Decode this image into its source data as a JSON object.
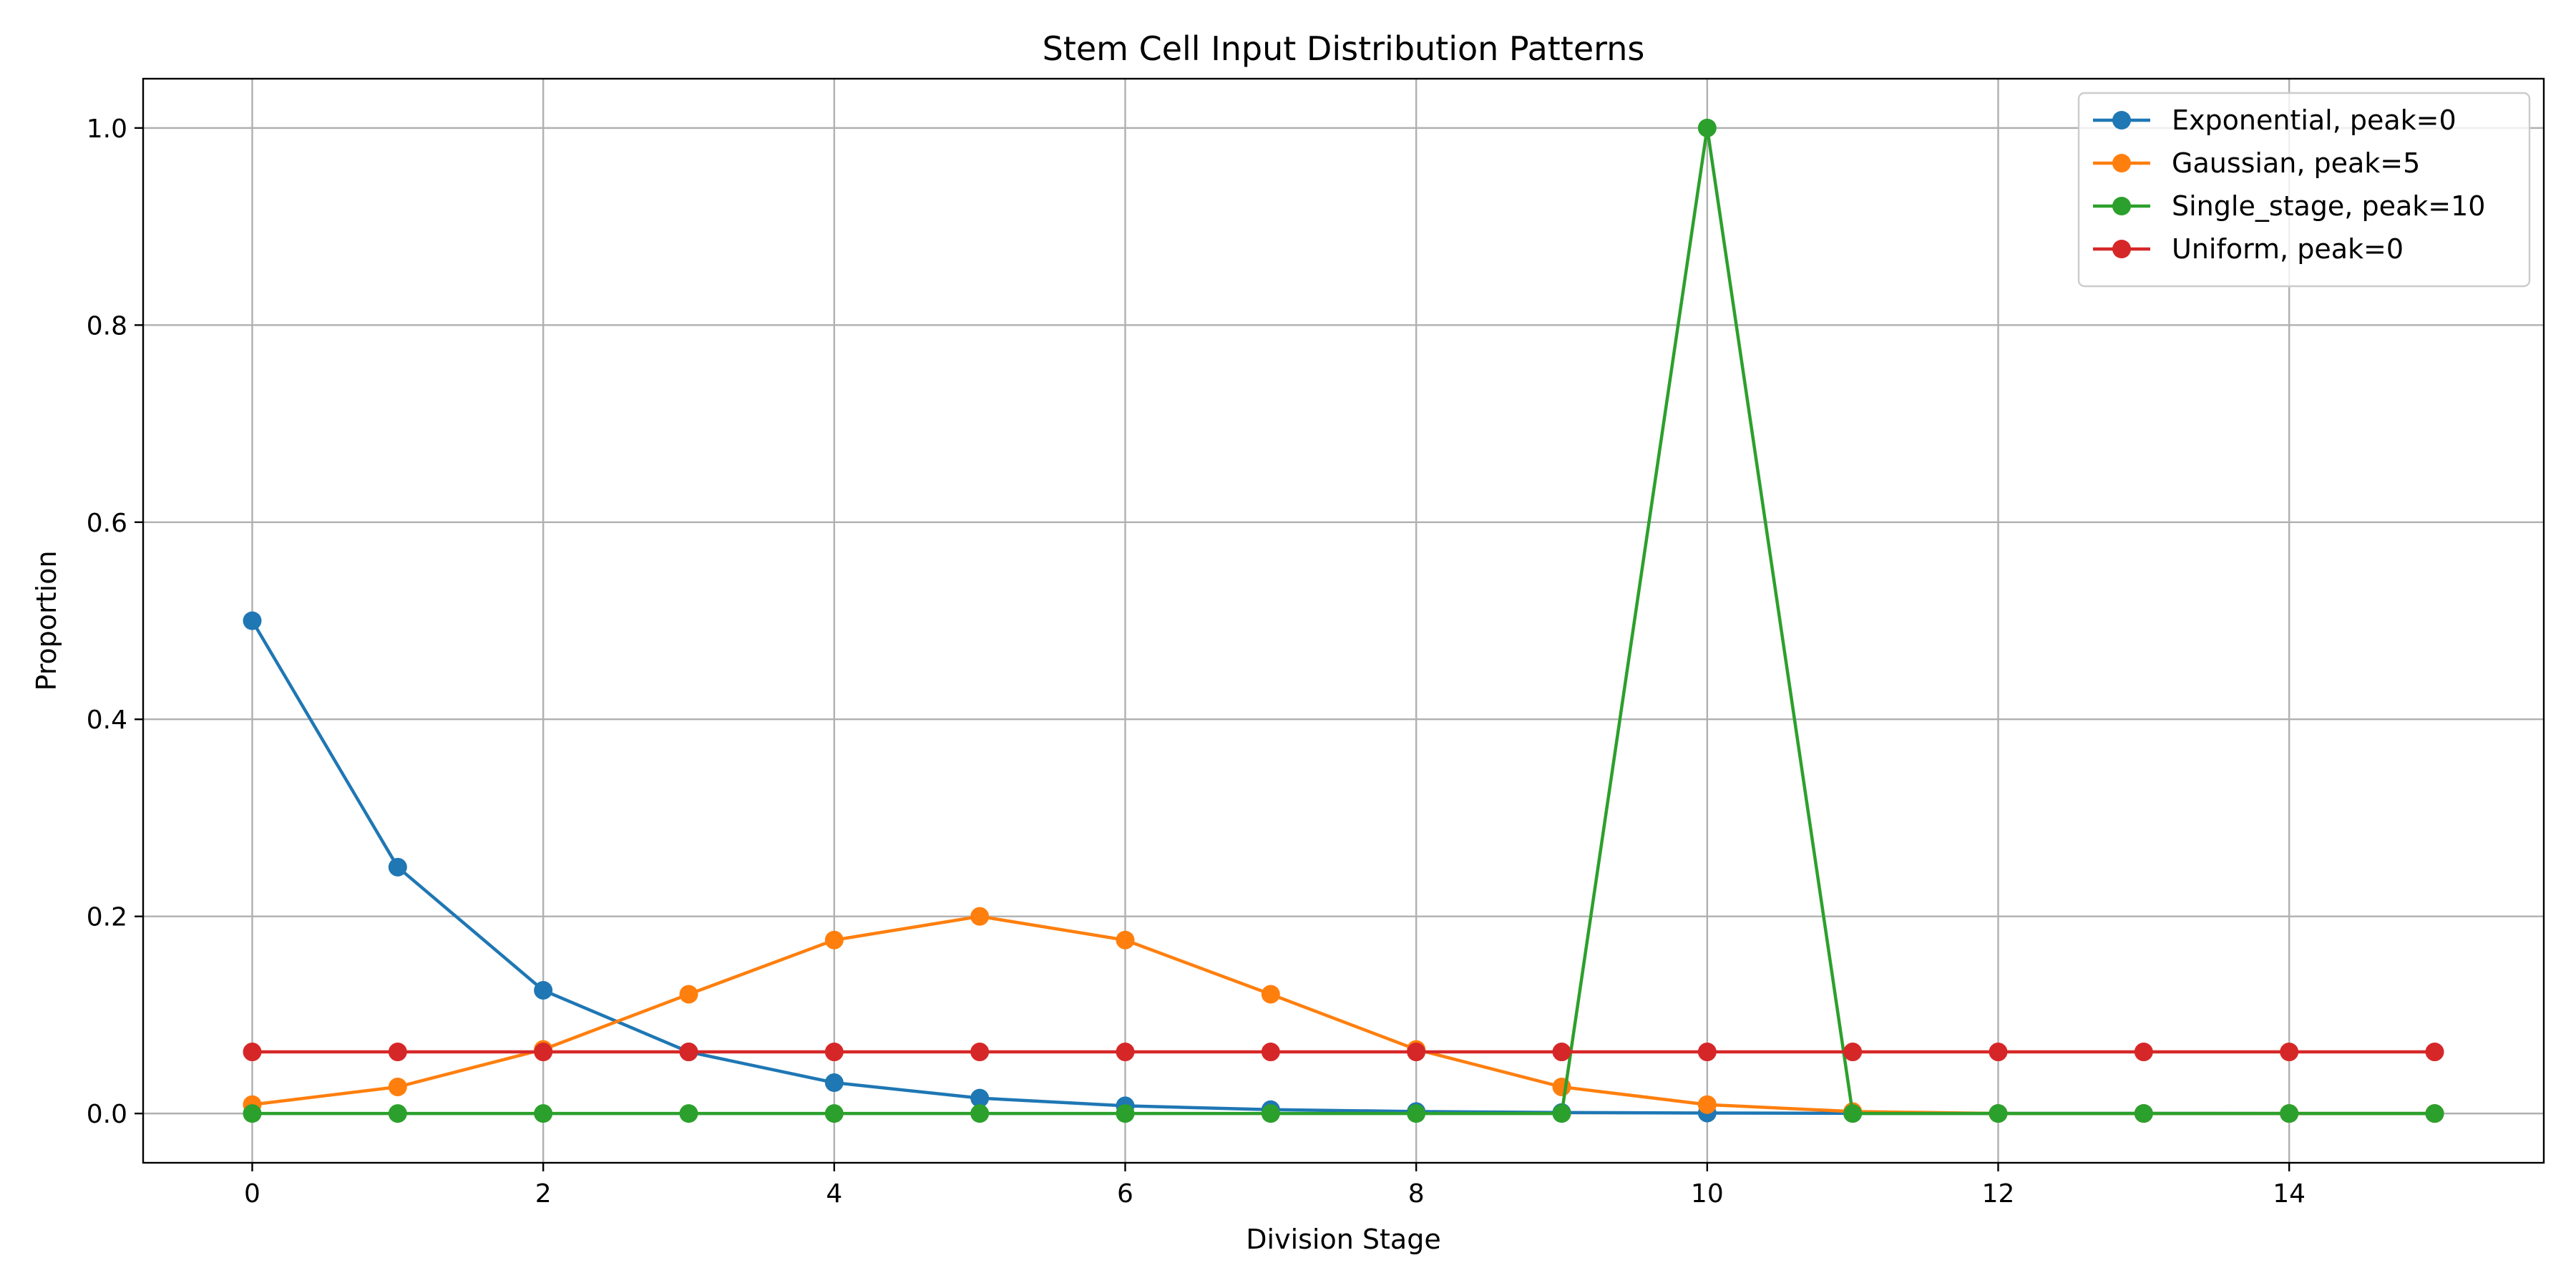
{
  "chart_data": {
    "type": "line",
    "title": "Stem Cell Input Distribution Patterns",
    "xlabel": "Division Stage",
    "ylabel": "Proportion",
    "xlim": [
      -0.75,
      15.75
    ],
    "ylim": [
      -0.05,
      1.05
    ],
    "xticks": [
      0,
      2,
      4,
      6,
      8,
      10,
      12,
      14
    ],
    "yticks": [
      0.0,
      0.2,
      0.4,
      0.6,
      0.8,
      1.0
    ],
    "xtick_labels": [
      "0",
      "2",
      "4",
      "6",
      "8",
      "10",
      "12",
      "14"
    ],
    "ytick_labels": [
      "0.0",
      "0.2",
      "0.4",
      "0.6",
      "0.8",
      "1.0"
    ],
    "grid": true,
    "legend_position": "top-right",
    "x": [
      0,
      1,
      2,
      3,
      4,
      5,
      6,
      7,
      8,
      9,
      10,
      11,
      12,
      13,
      14,
      15
    ],
    "series": [
      {
        "name": "Exponential, peak=0",
        "color": "#1f77b4",
        "values": [
          0.5,
          0.25,
          0.125,
          0.0625,
          0.0313,
          0.0156,
          0.0078,
          0.0039,
          0.002,
          0.001,
          0.0005,
          0.0002,
          0.0001,
          0.0001,
          0.0,
          0.0
        ]
      },
      {
        "name": "Gaussian, peak=5",
        "color": "#ff7f0e",
        "values": [
          0.009,
          0.027,
          0.065,
          0.121,
          0.176,
          0.2,
          0.176,
          0.121,
          0.065,
          0.027,
          0.009,
          0.002,
          0.0,
          0.0,
          0.0,
          0.0
        ]
      },
      {
        "name": "Single_stage, peak=10",
        "color": "#2ca02c",
        "values": [
          0,
          0,
          0,
          0,
          0,
          0,
          0,
          0,
          0,
          0,
          1.0,
          0,
          0,
          0,
          0,
          0
        ]
      },
      {
        "name": "Uniform, peak=0",
        "color": "#d62728",
        "values": [
          0.0625,
          0.0625,
          0.0625,
          0.0625,
          0.0625,
          0.0625,
          0.0625,
          0.0625,
          0.0625,
          0.0625,
          0.0625,
          0.0625,
          0.0625,
          0.0625,
          0.0625,
          0.0625
        ]
      }
    ]
  }
}
